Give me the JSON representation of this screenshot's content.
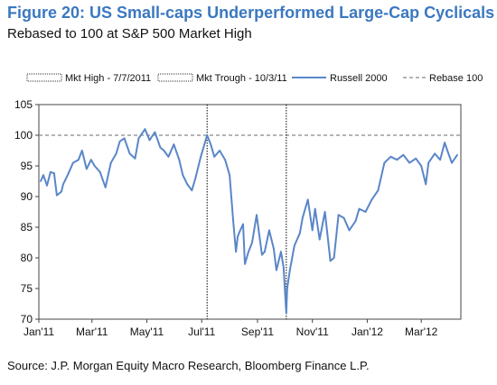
{
  "title": "Figure 20: US Small-caps Underperformed Large-Cap Cyclicals",
  "subtitle": "Rebased to 100 at S&P 500 Market High",
  "source": "Source: J.P. Morgan Equity Macro Research, Bloomberg Finance L.P.",
  "colors": {
    "title": "#3B78C0",
    "series": "#5A86C8",
    "reference": "#888888",
    "marker": "#000000"
  },
  "chart_data": {
    "type": "line",
    "title": "Figure 20: US Small-caps Underperformed Large-Cap Cyclicals",
    "subtitle": "Rebased to 100 at S&P 500 Market High",
    "ylim": [
      70,
      105
    ],
    "y_ticks": [
      70,
      75,
      80,
      85,
      90,
      95,
      100,
      105
    ],
    "xlim": [
      "2011-01-01",
      "2012-04-14"
    ],
    "x_ticks": [
      {
        "date": "2011-01-01",
        "label": "Jan'11"
      },
      {
        "date": "2011-03-01",
        "label": "Mar'11"
      },
      {
        "date": "2011-05-01",
        "label": "May'11"
      },
      {
        "date": "2011-07-01",
        "label": "Jul'11"
      },
      {
        "date": "2011-09-01",
        "label": "Sep'11"
      },
      {
        "date": "2011-11-01",
        "label": "Nov'11"
      },
      {
        "date": "2012-01-01",
        "label": "Jan'12"
      },
      {
        "date": "2012-03-01",
        "label": "Mar'12"
      }
    ],
    "grid": false,
    "legend_position": "top",
    "legend": [
      {
        "label": "Mkt High - 7/7/2011",
        "style": "vline-dotted"
      },
      {
        "label": "Mkt Trough - 10/3/11",
        "style": "vline-dotted"
      },
      {
        "label": "Russell 2000",
        "style": "line"
      },
      {
        "label": "Rebase 100",
        "style": "dashed"
      }
    ],
    "vlines": [
      {
        "name": "Mkt High - 7/7/2011",
        "x": "2011-07-07"
      },
      {
        "name": "Mkt Trough - 10/3/11",
        "x": "2011-10-03"
      }
    ],
    "hlines": [
      {
        "name": "Rebase 100",
        "y": 100
      }
    ],
    "series": [
      {
        "name": "Russell 2000",
        "x": [
          "2011-01-03",
          "2011-01-06",
          "2011-01-10",
          "2011-01-14",
          "2011-01-18",
          "2011-01-21",
          "2011-01-26",
          "2011-01-28",
          "2011-02-02",
          "2011-02-08",
          "2011-02-14",
          "2011-02-18",
          "2011-02-23",
          "2011-02-28",
          "2011-03-04",
          "2011-03-10",
          "2011-03-16",
          "2011-03-22",
          "2011-03-28",
          "2011-04-01",
          "2011-04-06",
          "2011-04-12",
          "2011-04-18",
          "2011-04-22",
          "2011-04-29",
          "2011-05-04",
          "2011-05-10",
          "2011-05-16",
          "2011-05-20",
          "2011-05-25",
          "2011-05-31",
          "2011-06-06",
          "2011-06-10",
          "2011-06-15",
          "2011-06-20",
          "2011-06-24",
          "2011-06-30",
          "2011-07-07",
          "2011-07-11",
          "2011-07-15",
          "2011-07-21",
          "2011-07-27",
          "2011-08-01",
          "2011-08-05",
          "2011-08-08",
          "2011-08-10",
          "2011-08-12",
          "2011-08-16",
          "2011-08-18",
          "2011-08-22",
          "2011-08-26",
          "2011-08-31",
          "2011-09-06",
          "2011-09-09",
          "2011-09-14",
          "2011-09-19",
          "2011-09-22",
          "2011-09-27",
          "2011-09-30",
          "2011-10-03",
          "2011-10-04",
          "2011-10-07",
          "2011-10-12",
          "2011-10-18",
          "2011-10-21",
          "2011-10-27",
          "2011-11-01",
          "2011-11-04",
          "2011-11-09",
          "2011-11-15",
          "2011-11-21",
          "2011-11-25",
          "2011-11-30",
          "2011-12-06",
          "2011-12-12",
          "2011-12-19",
          "2011-12-23",
          "2011-12-30",
          "2012-01-06",
          "2012-01-13",
          "2012-01-20",
          "2012-01-27",
          "2012-02-03",
          "2012-02-10",
          "2012-02-17",
          "2012-02-24",
          "2012-03-01",
          "2012-03-06",
          "2012-03-09",
          "2012-03-16",
          "2012-03-22",
          "2012-03-27",
          "2012-03-30",
          "2012-04-04",
          "2012-04-10"
        ],
        "y": [
          92.5,
          93.5,
          91.8,
          94.0,
          93.8,
          90.2,
          90.8,
          92.0,
          93.5,
          95.5,
          96.0,
          97.5,
          94.5,
          96.0,
          95.0,
          94.0,
          91.5,
          95.5,
          97.0,
          99.0,
          99.5,
          97.0,
          96.2,
          99.5,
          101.0,
          99.2,
          100.5,
          98.0,
          97.5,
          96.5,
          98.5,
          96.0,
          93.5,
          92.0,
          91.0,
          93.0,
          96.5,
          100.0,
          98.5,
          96.5,
          97.5,
          96.0,
          93.5,
          86.0,
          81.0,
          83.5,
          84.2,
          85.5,
          79.0,
          81.0,
          82.5,
          87.0,
          80.5,
          81.0,
          84.5,
          81.5,
          78.0,
          81.0,
          78.5,
          71.0,
          75.0,
          78.0,
          82.0,
          84.0,
          86.5,
          89.5,
          84.5,
          88.0,
          83.0,
          87.5,
          79.5,
          80.0,
          87.0,
          86.5,
          84.5,
          86.0,
          88.0,
          87.5,
          89.5,
          91.0,
          95.5,
          96.5,
          96.0,
          96.8,
          95.5,
          96.2,
          95.0,
          92.0,
          95.5,
          97.0,
          96.0,
          98.8,
          97.5,
          95.5,
          96.8
        ]
      }
    ]
  }
}
